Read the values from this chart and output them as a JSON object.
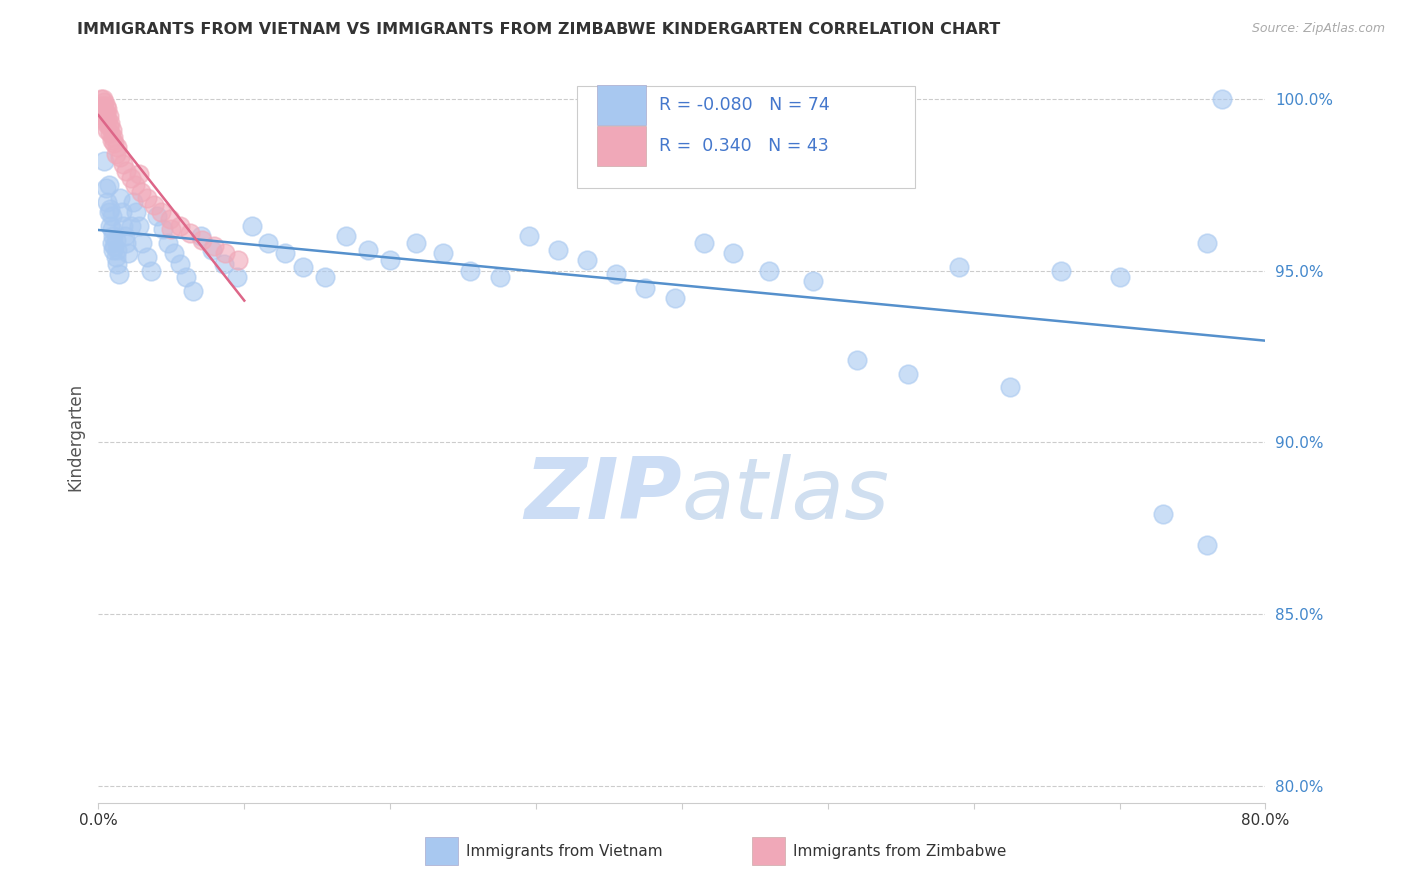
{
  "title": "IMMIGRANTS FROM VIETNAM VS IMMIGRANTS FROM ZIMBABWE KINDERGARTEN CORRELATION CHART",
  "source": "Source: ZipAtlas.com",
  "ylabel": "Kindergarten",
  "xlim": [
    0.0,
    0.8
  ],
  "ylim": [
    0.795,
    1.008
  ],
  "yticks": [
    0.8,
    0.85,
    0.9,
    0.95,
    1.0
  ],
  "ytick_labels": [
    "80.0%",
    "85.0%",
    "90.0%",
    "95.0%",
    "100.0%"
  ],
  "xticks": [
    0.0,
    0.1,
    0.2,
    0.3,
    0.4,
    0.5,
    0.6,
    0.7,
    0.8
  ],
  "xtick_labels": [
    "0.0%",
    "",
    "",
    "",
    "",
    "",
    "",
    "",
    "80.0%"
  ],
  "legend_labels": [
    "Immigrants from Vietnam",
    "Immigrants from Zimbabwe"
  ],
  "R_vietnam": -0.08,
  "N_vietnam": 74,
  "R_zimbabwe": 0.34,
  "N_zimbabwe": 43,
  "color_vietnam": "#a8c8f0",
  "color_zimbabwe": "#f0a8b8",
  "trendline_vietnam_color": "#5590cc",
  "trendline_zimbabwe_color": "#dd6688",
  "watermark": "ZIPatlas",
  "watermark_color": "#ccddf5",
  "vietnam_x": [
    0.004,
    0.005,
    0.006,
    0.007,
    0.007,
    0.008,
    0.008,
    0.009,
    0.009,
    0.009,
    0.01,
    0.01,
    0.011,
    0.012,
    0.012,
    0.013,
    0.013,
    0.014,
    0.015,
    0.016,
    0.017,
    0.018,
    0.019,
    0.02,
    0.022,
    0.024,
    0.026,
    0.028,
    0.03,
    0.033,
    0.036,
    0.04,
    0.044,
    0.048,
    0.052,
    0.056,
    0.06,
    0.065,
    0.07,
    0.078,
    0.086,
    0.095,
    0.105,
    0.116,
    0.128,
    0.14,
    0.155,
    0.17,
    0.185,
    0.2,
    0.218,
    0.236,
    0.255,
    0.275,
    0.295,
    0.315,
    0.335,
    0.355,
    0.375,
    0.395,
    0.415,
    0.435,
    0.46,
    0.49,
    0.52,
    0.555,
    0.59,
    0.625,
    0.66,
    0.7,
    0.73,
    0.76,
    0.76,
    0.77
  ],
  "vietnam_y": [
    0.982,
    0.974,
    0.97,
    0.967,
    0.975,
    0.963,
    0.968,
    0.958,
    0.962,
    0.966,
    0.956,
    0.96,
    0.957,
    0.954,
    0.959,
    0.952,
    0.956,
    0.949,
    0.971,
    0.967,
    0.963,
    0.96,
    0.958,
    0.955,
    0.963,
    0.97,
    0.967,
    0.963,
    0.958,
    0.954,
    0.95,
    0.966,
    0.962,
    0.958,
    0.955,
    0.952,
    0.948,
    0.944,
    0.96,
    0.956,
    0.952,
    0.948,
    0.963,
    0.958,
    0.955,
    0.951,
    0.948,
    0.96,
    0.956,
    0.953,
    0.958,
    0.955,
    0.95,
    0.948,
    0.96,
    0.956,
    0.953,
    0.949,
    0.945,
    0.942,
    0.958,
    0.955,
    0.95,
    0.947,
    0.924,
    0.92,
    0.951,
    0.916,
    0.95,
    0.948,
    0.879,
    0.87,
    0.958,
    1.0
  ],
  "zimbabwe_x": [
    0.001,
    0.002,
    0.002,
    0.003,
    0.003,
    0.003,
    0.004,
    0.004,
    0.004,
    0.005,
    0.005,
    0.005,
    0.006,
    0.006,
    0.006,
    0.007,
    0.007,
    0.008,
    0.008,
    0.009,
    0.009,
    0.01,
    0.011,
    0.012,
    0.013,
    0.015,
    0.017,
    0.019,
    0.022,
    0.025,
    0.029,
    0.033,
    0.038,
    0.043,
    0.049,
    0.056,
    0.063,
    0.071,
    0.079,
    0.087,
    0.096,
    0.05,
    0.028
  ],
  "zimbabwe_y": [
    0.998,
    1.0,
    0.997,
    1.0,
    0.998,
    0.995,
    0.999,
    0.997,
    0.994,
    0.998,
    0.996,
    0.993,
    0.997,
    0.994,
    0.991,
    0.995,
    0.992,
    0.993,
    0.99,
    0.991,
    0.988,
    0.989,
    0.987,
    0.984,
    0.986,
    0.983,
    0.981,
    0.979,
    0.977,
    0.975,
    0.973,
    0.971,
    0.969,
    0.967,
    0.965,
    0.963,
    0.961,
    0.959,
    0.957,
    0.955,
    0.953,
    0.962,
    0.978
  ]
}
